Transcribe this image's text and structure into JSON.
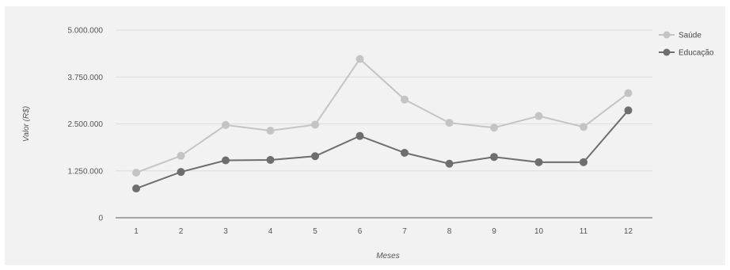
{
  "chart_data": {
    "type": "line",
    "title": "",
    "xlabel": "Meses",
    "ylabel": "Valor (R$)",
    "categories": [
      "1",
      "2",
      "3",
      "4",
      "5",
      "6",
      "7",
      "8",
      "9",
      "10",
      "11",
      "12"
    ],
    "yticks": [
      "0",
      "1.250.000",
      "2.500.000",
      "3.750.000",
      "5.000.000"
    ],
    "ylim": [
      0,
      5000000
    ],
    "grid": true,
    "legend_position": "right",
    "series": [
      {
        "name": "Saúde",
        "color": "#c4c4c4",
        "values": [
          1200000,
          1650000,
          2470000,
          2320000,
          2480000,
          4230000,
          3150000,
          2530000,
          2400000,
          2710000,
          2420000,
          3320000
        ]
      },
      {
        "name": "Educação",
        "color": "#6e6e6e",
        "values": [
          780000,
          1220000,
          1530000,
          1540000,
          1640000,
          2180000,
          1730000,
          1440000,
          1620000,
          1480000,
          1480000,
          2860000
        ]
      }
    ]
  }
}
